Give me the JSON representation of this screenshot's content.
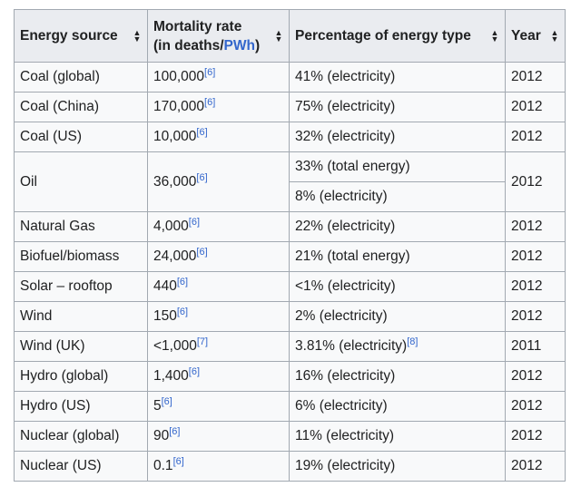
{
  "table": {
    "headers": {
      "energy_source": "Energy source",
      "mortality_line1": "Mortality rate",
      "mortality_line2_prefix": "(in deaths/",
      "mortality_unit_link": "PWh",
      "mortality_line2_suffix": ")",
      "percentage": "Percentage of energy type",
      "year": "Year"
    },
    "rows": [
      {
        "source": "Coal (global)",
        "rate": "100,000",
        "rate_ref": "[6]",
        "pct": "41% (electricity)",
        "pct_ref": "",
        "year": "2012"
      },
      {
        "source": "Coal (China)",
        "rate": "170,000",
        "rate_ref": "[6]",
        "pct": "75% (electricity)",
        "pct_ref": "",
        "year": "2012"
      },
      {
        "source": "Coal (US)",
        "rate": "10,000",
        "rate_ref": "[6]",
        "pct": "32% (electricity)",
        "pct_ref": "",
        "year": "2012"
      },
      {
        "source": "Natural Gas",
        "rate": "4,000",
        "rate_ref": "[6]",
        "pct": "22% (electricity)",
        "pct_ref": "",
        "year": "2012"
      },
      {
        "source": "Biofuel/biomass",
        "rate": "24,000",
        "rate_ref": "[6]",
        "pct": "21% (total energy)",
        "pct_ref": "",
        "year": "2012"
      },
      {
        "source": "Solar – rooftop",
        "rate": "440",
        "rate_ref": "[6]",
        "pct": "<1% (electricity)",
        "pct_ref": "",
        "year": "2012"
      },
      {
        "source": "Wind",
        "rate": "150",
        "rate_ref": "[6]",
        "pct": "2% (electricity)",
        "pct_ref": "",
        "year": "2012"
      },
      {
        "source": "Wind (UK)",
        "rate": "<1,000",
        "rate_ref": "[7]",
        "pct": "3.81% (electricity)",
        "pct_ref": "[8]",
        "year": "2011"
      },
      {
        "source": "Hydro (global)",
        "rate": "1,400",
        "rate_ref": "[6]",
        "pct": "16% (electricity)",
        "pct_ref": "",
        "year": "2012"
      },
      {
        "source": "Hydro (US)",
        "rate": "5",
        "rate_ref": "[6]",
        "pct": "6% (electricity)",
        "pct_ref": "",
        "year": "2012"
      },
      {
        "source": "Nuclear (global)",
        "rate": "90",
        "rate_ref": "[6]",
        "pct": "11% (electricity)",
        "pct_ref": "",
        "year": "2012"
      },
      {
        "source": "Nuclear (US)",
        "rate": "0.1",
        "rate_ref": "[6]",
        "pct": "19% (electricity)",
        "pct_ref": "",
        "year": "2012"
      }
    ],
    "oil_row": {
      "source": "Oil",
      "rate": "36,000",
      "rate_ref": "[6]",
      "pct_total": "33% (total energy)",
      "pct_electricity": "8% (electricity)",
      "year": "2012"
    }
  },
  "icons": {
    "sort": "sort-arrows-icon"
  },
  "colors": {
    "link": "#3366cc",
    "header_bg": "#eaecf0",
    "cell_bg": "#f8f9fa",
    "border": "#a2a9b1"
  }
}
